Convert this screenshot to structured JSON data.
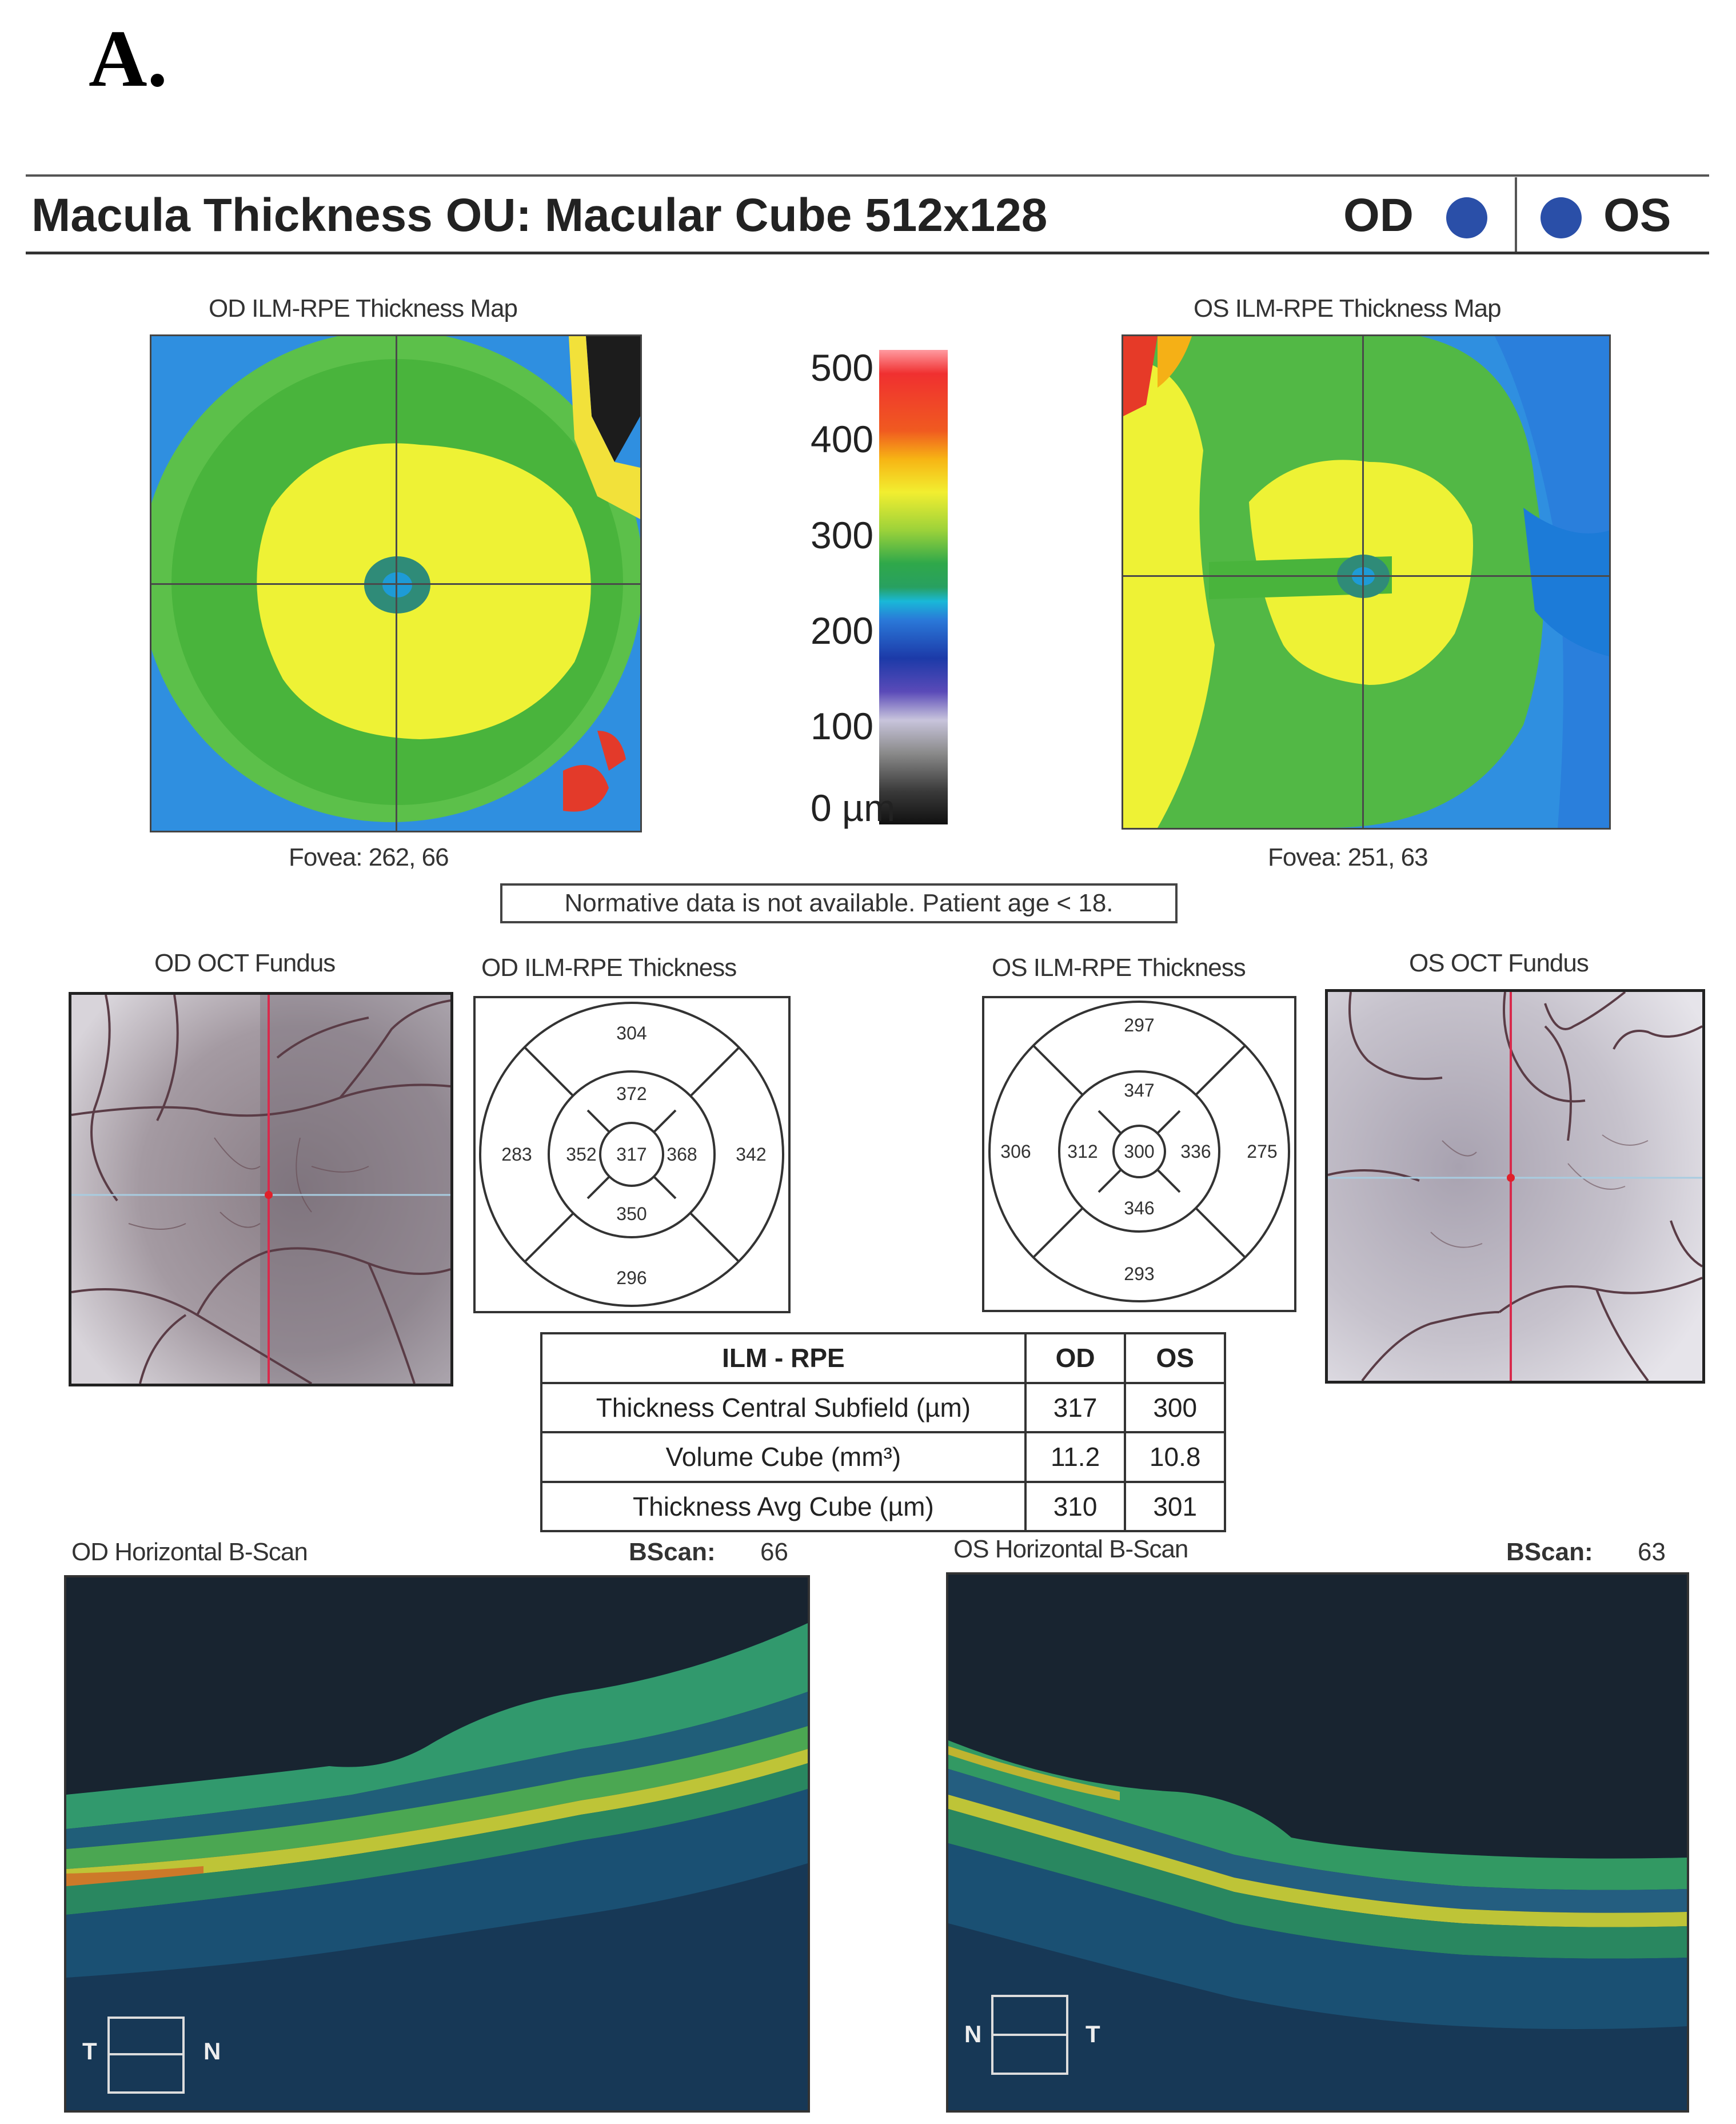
{
  "panel_letter": "A.",
  "header": {
    "title": "Macula Thickness OU: Macular Cube 512x128",
    "od_label": "OD",
    "os_label": "OS",
    "eye_color": "#2a4fa8"
  },
  "thickness_maps": {
    "od_title": "OD ILM-RPE Thickness Map",
    "os_title": "OS ILM-RPE Thickness Map",
    "od_fovea": "Fovea: 262, 66",
    "os_fovea": "Fovea: 251, 63"
  },
  "color_scale": {
    "labels": [
      "500",
      "400",
      "300",
      "200",
      "100",
      "0 µm"
    ]
  },
  "normative_note": "Normative data is not available. Patient age < 18.",
  "fundus": {
    "od_title": "OD OCT Fundus",
    "os_title": "OS OCT Fundus"
  },
  "etdrs": {
    "od": {
      "title": "OD ILM-RPE Thickness",
      "superior_outer": "304",
      "superior_inner": "372",
      "temporal_outer": "283",
      "temporal_inner": "352",
      "center": "317",
      "nasal_inner": "368",
      "nasal_outer": "342",
      "inferior_inner": "350",
      "inferior_outer": "296"
    },
    "os": {
      "title": "OS ILM-RPE Thickness",
      "superior_outer": "297",
      "superior_inner": "347",
      "nasal_outer": "306",
      "nasal_inner": "312",
      "center": "300",
      "temporal_inner": "336",
      "temporal_outer": "275",
      "inferior_inner": "346",
      "inferior_outer": "293"
    }
  },
  "summary_table": {
    "headers": [
      "ILM - RPE",
      "OD",
      "OS"
    ],
    "rows": [
      [
        "Thickness Central Subfield (µm)",
        "317",
        "300"
      ],
      [
        "Volume Cube (mm³)",
        "11.2",
        "10.8"
      ],
      [
        "Thickness Avg Cube (µm)",
        "310",
        "301"
      ]
    ]
  },
  "bscans": {
    "od_title": "OD Horizontal B-Scan",
    "od_bscan_label": "BScan:",
    "od_bscan_value": "66",
    "od_left_dir": "T",
    "od_right_dir": "N",
    "os_title": "OS Horizontal B-Scan",
    "os_bscan_label": "BScan:",
    "os_bscan_value": "63",
    "os_left_dir": "N",
    "os_right_dir": "T"
  }
}
